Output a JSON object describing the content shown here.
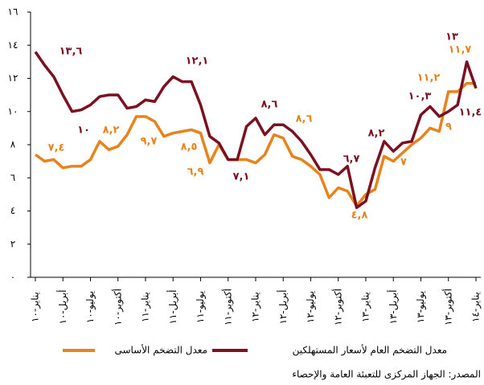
{
  "chart_data": {
    "type": "line",
    "categories": [
      "يناير-١٠",
      null,
      null,
      "أبريل-١٠",
      null,
      null,
      "يوليو-١٠",
      null,
      null,
      "أكتوبر-١٠",
      null,
      null,
      "يناير-١١",
      null,
      null,
      "أبريل-١١",
      null,
      null,
      "يوليو-١١",
      null,
      null,
      "أكتوبر-١١",
      null,
      null,
      "يناير-١٢",
      null,
      null,
      "أبريل-١٢",
      null,
      null,
      "يوليو-١٢",
      null,
      null,
      "أكتوبر-١٢",
      null,
      null,
      "يناير-١٣",
      null,
      null,
      "أبريل-١٣",
      null,
      null,
      "يوليو-١٣",
      null,
      null,
      "أكتوبر-١٣",
      null,
      null,
      "يناير-١٤"
    ],
    "series": [
      {
        "name": "معدل التضخم العام لأسعار المستهلكين",
        "color": "#7b1020",
        "values": [
          13.6,
          12.8,
          12.1,
          11.0,
          10.0,
          10.1,
          10.4,
          10.9,
          11.0,
          11.0,
          10.2,
          10.3,
          10.7,
          10.6,
          11.5,
          12.1,
          11.8,
          11.8,
          10.4,
          8.5,
          8.1,
          7.1,
          7.1,
          9.1,
          9.6,
          8.6,
          9.2,
          9.2,
          8.8,
          8.2,
          7.4,
          6.5,
          6.5,
          6.2,
          6.7,
          4.2,
          4.6,
          6.6,
          8.2,
          7.6,
          8.1,
          8.2,
          9.8,
          10.3,
          9.7,
          10.0,
          10.4,
          13.0,
          11.4
        ]
      },
      {
        "name": "معدل التضخم الأساسى",
        "color": "#e8831c",
        "values": [
          7.4,
          7.0,
          7.1,
          6.6,
          6.7,
          6.7,
          7.1,
          8.2,
          7.7,
          7.9,
          8.6,
          9.7,
          9.7,
          9.4,
          8.5,
          8.7,
          8.8,
          8.9,
          8.7,
          6.9,
          8.0,
          7.1,
          7.1,
          7.1,
          6.9,
          7.4,
          8.6,
          8.4,
          7.3,
          7.1,
          6.7,
          6.2,
          4.8,
          5.4,
          5.2,
          4.3,
          5.0,
          5.3,
          7.3,
          7.0,
          7.5,
          8.0,
          8.4,
          9.0,
          8.8,
          11.2,
          11.2,
          11.7,
          11.7
        ]
      }
    ],
    "ylim": [
      0,
      16
    ],
    "yticks": [
      {
        "value": 0,
        "label": "٠"
      },
      {
        "value": 2,
        "label": "٢"
      },
      {
        "value": 4,
        "label": "٤"
      },
      {
        "value": 6,
        "label": "٦"
      },
      {
        "value": 8,
        "label": "٨"
      },
      {
        "value": 10,
        "label": "١٠"
      },
      {
        "value": 12,
        "label": "١٢"
      },
      {
        "value": 14,
        "label": "١٤"
      },
      {
        "value": 16,
        "label": "١٦"
      }
    ],
    "annotations": [
      {
        "text": "١٣,٦",
        "series": 0
      },
      {
        "text": "١٢,١",
        "series": 0
      },
      {
        "text": "٨,٦",
        "series": 0
      },
      {
        "text": "٧,١",
        "series": 0
      },
      {
        "text": "٦,٧",
        "series": 0
      },
      {
        "text": "٨,٢",
        "series": 0
      },
      {
        "text": "١٠,٣",
        "series": 0
      },
      {
        "text": "١٣",
        "series": 0
      },
      {
        "text": "١١,٤",
        "series": 0
      },
      {
        "text": "١٠",
        "series": 0
      },
      {
        "text": "٧,٤",
        "series": 1
      },
      {
        "text": "٨,٢",
        "series": 1
      },
      {
        "text": "٩,٧",
        "series": 1
      },
      {
        "text": "٨,٥",
        "series": 1
      },
      {
        "text": "٦,٩",
        "series": 1
      },
      {
        "text": "٨,٦",
        "series": 1
      },
      {
        "text": "٤,٨",
        "series": 1
      },
      {
        "text": "٧",
        "series": 1
      },
      {
        "text": "١١,٢",
        "series": 1
      },
      {
        "text": "٩",
        "series": 1
      },
      {
        "text": "١١,٧",
        "series": 1
      }
    ],
    "source": "المصدر: الجهاز المركزى للتعبئة العامة والإحصاء"
  }
}
